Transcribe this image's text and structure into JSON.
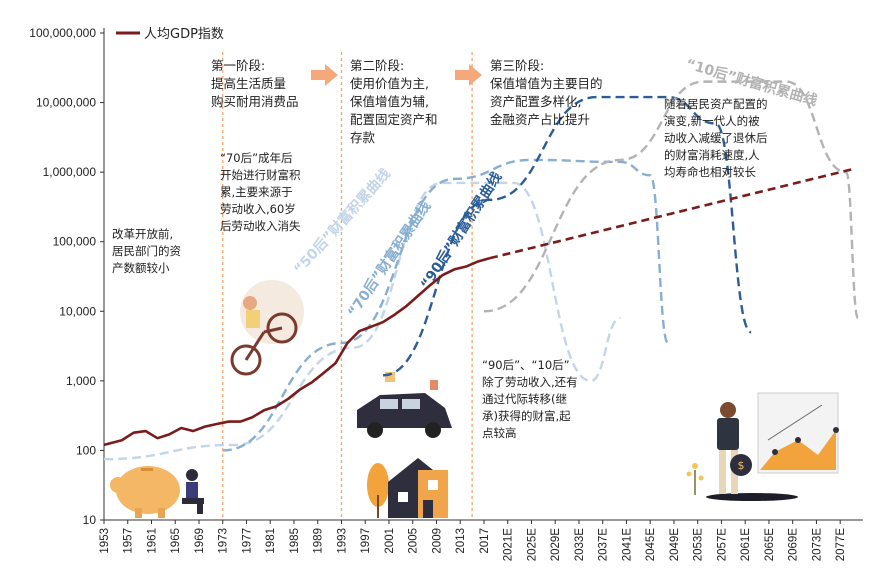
{
  "chart_data": {
    "type": "line",
    "yscale": "log",
    "ylim": [
      10,
      100000000
    ],
    "yticks": [
      "10",
      "100",
      "1,000",
      "10,000",
      "100,000",
      "1,000,000",
      "10,000,000",
      "100,000,000"
    ],
    "xticks": [
      "1953",
      "1957",
      "1961",
      "1965",
      "1969",
      "1973",
      "1977",
      "1981",
      "1985",
      "1989",
      "1993",
      "1997",
      "2001",
      "2005",
      "2009",
      "2013",
      "2017",
      "2021E",
      "2025E",
      "2029E",
      "2033E",
      "2037E",
      "2041E",
      "2045E",
      "2049E",
      "2053E",
      "2057E",
      "2061E",
      "2065E",
      "2069E",
      "2073E",
      "2077E"
    ],
    "legend": "人均GDP指数",
    "series": [
      {
        "name": "人均GDP指数",
        "color": "#7b1c1c",
        "actual": [
          [
            1953,
            120
          ],
          [
            1956,
            140
          ],
          [
            1958,
            180
          ],
          [
            1960,
            190
          ],
          [
            1962,
            150
          ],
          [
            1964,
            170
          ],
          [
            1966,
            210
          ],
          [
            1968,
            190
          ],
          [
            1970,
            220
          ],
          [
            1972,
            240
          ],
          [
            1974,
            260
          ],
          [
            1976,
            260
          ],
          [
            1978,
            300
          ],
          [
            1980,
            380
          ],
          [
            1982,
            430
          ],
          [
            1984,
            550
          ],
          [
            1986,
            750
          ],
          [
            1988,
            950
          ],
          [
            1990,
            1300
          ],
          [
            1992,
            1800
          ],
          [
            1994,
            3500
          ],
          [
            1996,
            5200
          ],
          [
            1998,
            6000
          ],
          [
            2000,
            7000
          ],
          [
            2002,
            9000
          ],
          [
            2004,
            12000
          ],
          [
            2006,
            17000
          ],
          [
            2008,
            24000
          ],
          [
            2010,
            33000
          ],
          [
            2012,
            40000
          ],
          [
            2014,
            44000
          ],
          [
            2016,
            52000
          ],
          [
            2018,
            58000
          ]
        ],
        "forecast": [
          [
            2018,
            58000
          ],
          [
            2079,
            1100000
          ]
        ]
      }
    ],
    "stages": [
      {
        "title": "第一阶段:",
        "lines": [
          "提高生活质量",
          "购买耐用消费品"
        ]
      },
      {
        "title": "第二阶段:",
        "lines": [
          "使用价值为主,",
          "保值增值为辅,",
          "配置固定资产和",
          "存款"
        ]
      },
      {
        "title": "第三阶段:",
        "lines": [
          "保值增值为主要目的",
          "资产配置多样化,",
          "金融资产占比提升"
        ]
      }
    ],
    "curve_labels": [
      "“50后”财富积累曲线",
      "“70后”财富积累曲线",
      "“90后”财富积累曲线",
      "“10后”财富积累曲线"
    ],
    "annotations": {
      "pre_reform": [
        "改革开放前,",
        "居民部门的资",
        "产数额较小"
      ],
      "seventies": [
        "“70后”成年后",
        "开始进行财富积",
        "累,主要来源于",
        "劳动收入,60岁",
        "后劳动收入消失"
      ],
      "nineties": [
        "“90后”、“10后”",
        "除了劳动收入,还有",
        "通过代际转移(继",
        "承)获得的财富,起",
        "点较高"
      ],
      "newgen": [
        "随着居民资产配置的",
        "演变,新一代人的被",
        "动收入减缓了退休后",
        "的财富消耗速度,人",
        "均寿命也相对较长"
      ]
    },
    "colors": {
      "gdp": "#7b1c1c",
      "c50": "#c3d5e8",
      "c70": "#88aed0",
      "c90": "#2d5d96",
      "c10": "#b3b3b3",
      "stage_divider": "#f0a470",
      "arrow": "#f5a97a"
    }
  }
}
